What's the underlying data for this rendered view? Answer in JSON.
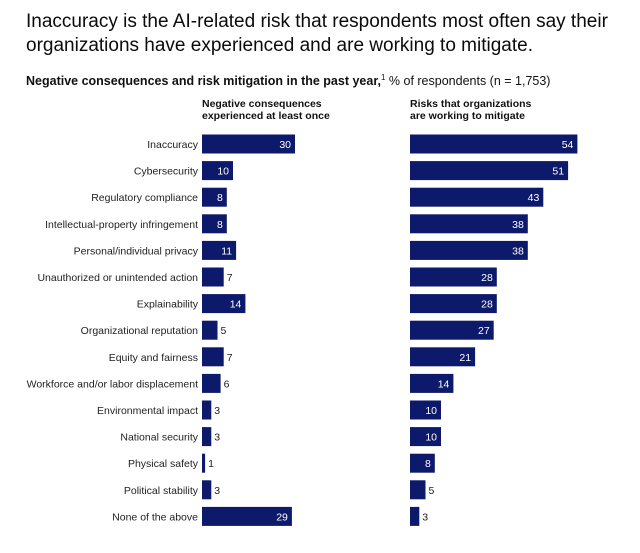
{
  "title": "Inaccuracy is the AI-related risk that respondents most often say their organizations have experienced and are working to mitigate.",
  "subtitle": {
    "bold": "Negative consequences and risk mitigation in the past year,",
    "footnote": "1",
    "rest": " % of respondents (n = 1,753)"
  },
  "chart_data": {
    "type": "bar",
    "orientation": "horizontal",
    "unit": "% of respondents",
    "categories": [
      "Inaccuracy",
      "Cybersecurity",
      "Regulatory compliance",
      "Intellectual-property infringement",
      "Personal/individual privacy",
      "Unauthorized or unintended action",
      "Explainability",
      "Organizational reputation",
      "Equity and fairness",
      "Workforce and/or labor displacement",
      "Environmental impact",
      "National security",
      "Physical safety",
      "Political stability",
      "None of the above"
    ],
    "series": [
      {
        "name_lines": [
          "Negative consequences",
          "experienced at least once"
        ],
        "values": [
          30,
          10,
          8,
          8,
          11,
          7,
          14,
          5,
          7,
          6,
          3,
          3,
          1,
          3,
          29
        ]
      },
      {
        "name_lines": [
          "Risks that organizations",
          "are working to mitigate"
        ],
        "values": [
          54,
          51,
          43,
          38,
          38,
          28,
          28,
          27,
          21,
          14,
          10,
          10,
          8,
          5,
          3
        ]
      }
    ],
    "xlim": [
      0,
      60
    ],
    "color": "#0d1a6b"
  }
}
